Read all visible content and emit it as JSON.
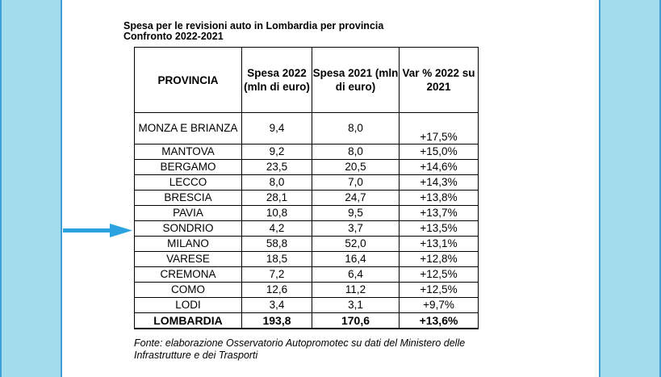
{
  "title": {
    "line1": "Spesa per le revisioni auto in Lombardia per provincia",
    "line2": "Confronto 2022-2021"
  },
  "table": {
    "headers": [
      "PROVINCIA",
      "Spesa 2022 (mln di euro)",
      "Spesa 2021 (mln di euro)",
      "Var % 2022 su 2021"
    ],
    "rows": [
      {
        "provincia": "MONZA E BRIANZA",
        "spesa_2022": "9,4",
        "spesa_2021": "8,0",
        "var": "+17,5%"
      },
      {
        "provincia": "MANTOVA",
        "spesa_2022": "9,2",
        "spesa_2021": "8,0",
        "var": "+15,0%"
      },
      {
        "provincia": "BERGAMO",
        "spesa_2022": "23,5",
        "spesa_2021": "20,5",
        "var": "+14,6%"
      },
      {
        "provincia": "LECCO",
        "spesa_2022": "8,0",
        "spesa_2021": "7,0",
        "var": "+14,3%"
      },
      {
        "provincia": "BRESCIA",
        "spesa_2022": "28,1",
        "spesa_2021": "24,7",
        "var": "+13,8%"
      },
      {
        "provincia": "PAVIA",
        "spesa_2022": "10,8",
        "spesa_2021": "9,5",
        "var": "+13,7%"
      },
      {
        "provincia": "SONDRIO",
        "spesa_2022": "4,2",
        "spesa_2021": "3,7",
        "var": "+13,5%"
      },
      {
        "provincia": "MILANO",
        "spesa_2022": "58,8",
        "spesa_2021": "52,0",
        "var": "+13,1%"
      },
      {
        "provincia": "VARESE",
        "spesa_2022": "18,5",
        "spesa_2021": "16,4",
        "var": "+12,8%"
      },
      {
        "provincia": "CREMONA",
        "spesa_2022": "7,2",
        "spesa_2021": "6,4",
        "var": "+12,5%"
      },
      {
        "provincia": "COMO",
        "spesa_2022": "12,6",
        "spesa_2021": "11,2",
        "var": "+12,5%"
      },
      {
        "provincia": "LODI",
        "spesa_2022": "3,4",
        "spesa_2021": "3,1",
        "var": "+9,7%"
      }
    ],
    "total": {
      "provincia": "LOMBARDIA",
      "spesa_2022": "193,8",
      "spesa_2021": "170,6",
      "var": "+13,6%"
    }
  },
  "note": "Fonte: elaborazione Osservatorio Autopromotec su dati del Ministero delle Infrastrutture e dei Trasporti",
  "colors": {
    "side_panel": "#a3dced",
    "panel_border": "#3f9fd6",
    "arrow": "#2aa3e0"
  },
  "icons": {
    "arrow": "arrow-right-icon"
  }
}
